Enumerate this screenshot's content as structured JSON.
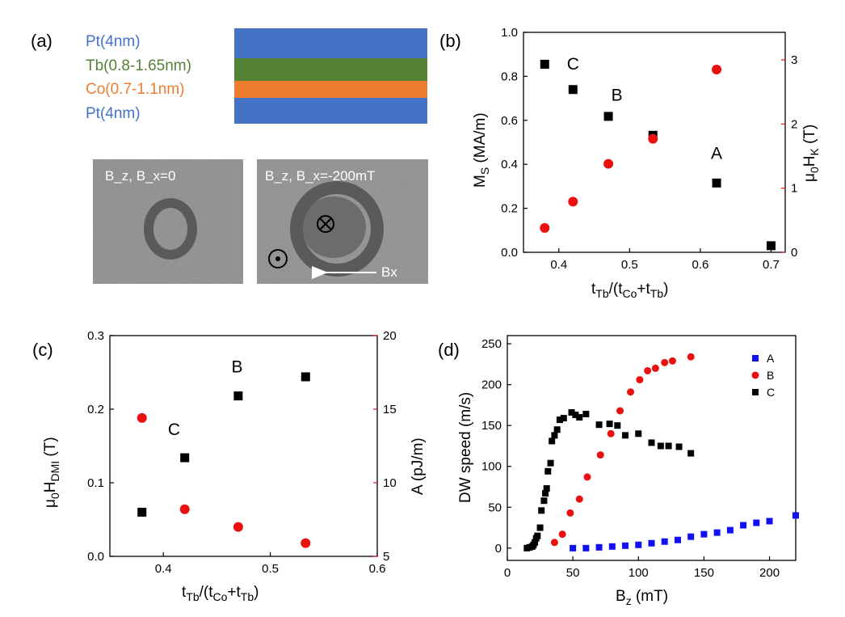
{
  "colors": {
    "black": "#000000",
    "red": "#e8110f",
    "blue": "#1010f0",
    "pt": "#4472c4",
    "tb": "#548235",
    "co": "#ed7d31"
  },
  "panel_a": {
    "label": "(a)",
    "layers": [
      {
        "name": "Pt(4nm)",
        "color": "#4472c4"
      },
      {
        "name": "Tb(0.8-1.65nm)",
        "color": "#548235"
      },
      {
        "name": "Co(0.7-1.1nm)",
        "color": "#ed7d31"
      },
      {
        "name": "Pt(4nm)",
        "color": "#4472c4"
      }
    ],
    "image_left_label": "B_z, B_x=0",
    "image_right_label": "B_z, B_x=-200mT",
    "arrow_label": "Bx"
  },
  "chart_data": [
    {
      "id": "b",
      "panel_label": "(b)",
      "type": "scatter",
      "xlabel": "t_Tb/(t_Co+t_Tb)",
      "ylabel_left": "M_S (MA/m)",
      "ylabel_right": "μ_0H_K (T)",
      "xlim": [
        0.35,
        0.72
      ],
      "xticks": [
        "0.4",
        "0.5",
        "0.6",
        "0.7"
      ],
      "ylim_left": [
        0,
        1.0
      ],
      "yticks_left": [
        "0.0",
        "0.2",
        "0.4",
        "0.6",
        "0.8",
        "1.0"
      ],
      "ylim_right": [
        0,
        3.43
      ],
      "yticks_right": [
        "0",
        "1",
        "2",
        "3"
      ],
      "series": [
        {
          "name": "M_S",
          "axis": "left",
          "marker": "square",
          "color": "#000000",
          "x": [
            0.38,
            0.42,
            0.47,
            0.533,
            0.623,
            0.7
          ],
          "y": [
            0.855,
            0.74,
            0.618,
            0.532,
            0.315,
            0.03
          ]
        },
        {
          "name": "μ0HK",
          "axis": "right",
          "marker": "circle",
          "color": "#e8110f",
          "x": [
            0.38,
            0.42,
            0.47,
            0.533,
            0.623
          ],
          "y": [
            0.38,
            0.79,
            1.38,
            1.77,
            2.85
          ]
        }
      ],
      "annotations": [
        {
          "text": "C",
          "x": 0.42,
          "y": 0.83
        },
        {
          "text": "B",
          "x": 0.482,
          "y": 0.69
        },
        {
          "text": "A",
          "x": 0.623,
          "y": 0.425
        }
      ]
    },
    {
      "id": "c",
      "panel_label": "(c)",
      "type": "scatter",
      "xlabel": "t_Tb/(t_Co+t_Tb)",
      "ylabel_left": "μ_0H_DMI (T)",
      "ylabel_right": "A (pJ/m)",
      "xlim": [
        0.35,
        0.6
      ],
      "xticks": [
        "0.4",
        "0.5",
        "0.6"
      ],
      "ylim_left": [
        0,
        0.3
      ],
      "yticks_left": [
        "0.0",
        "0.1",
        "0.2",
        "0.3"
      ],
      "ylim_right": [
        5,
        20
      ],
      "yticks_right": [
        "5",
        "10",
        "15",
        "20"
      ],
      "series": [
        {
          "name": "μ0HDMI",
          "axis": "left",
          "marker": "square",
          "color": "#000000",
          "x": [
            0.38,
            0.42,
            0.47,
            0.533
          ],
          "y": [
            0.06,
            0.134,
            0.218,
            0.244
          ]
        },
        {
          "name": "A",
          "axis": "right",
          "marker": "circle",
          "color": "#e8110f",
          "x": [
            0.38,
            0.42,
            0.47,
            0.533
          ],
          "y": [
            14.4,
            8.2,
            7.0,
            5.9
          ]
        }
      ],
      "annotations": [
        {
          "text": "C",
          "x": 0.41,
          "y": 0.165
        },
        {
          "text": "B",
          "x": 0.469,
          "y": 0.25
        }
      ]
    },
    {
      "id": "d",
      "panel_label": "(d)",
      "type": "scatter",
      "xlabel": "B_z (mT)",
      "ylabel_left": "DW speed (m/s)",
      "xlim": [
        0,
        220
      ],
      "xticks": [
        "0",
        "50",
        "100",
        "150",
        "200"
      ],
      "ylim_left": [
        -15,
        260
      ],
      "yticks_left": [
        "0",
        "50",
        "100",
        "150",
        "200",
        "250"
      ],
      "legend_position": "top-right",
      "series": [
        {
          "name": "A",
          "axis": "left",
          "marker": "square",
          "color": "#1010f0",
          "x": [
            50,
            60,
            70,
            80,
            90,
            100,
            110,
            120,
            130,
            140,
            150,
            160,
            170,
            180,
            190,
            200,
            220
          ],
          "y": [
            0,
            0,
            1,
            2,
            3,
            4,
            6,
            8,
            10,
            14,
            17,
            19,
            22,
            28,
            31,
            33,
            40
          ]
        },
        {
          "name": "B",
          "axis": "left",
          "marker": "circle",
          "color": "#e8110f",
          "x": [
            36,
            42,
            48,
            55,
            61,
            71,
            79,
            86,
            94,
            101,
            107,
            113,
            120,
            126,
            140
          ],
          "y": [
            7,
            17,
            43,
            60,
            87,
            114,
            140,
            168,
            191,
            206,
            217,
            220,
            227,
            229,
            234
          ]
        },
        {
          "name": "C",
          "axis": "left",
          "marker": "square",
          "color": "#000000",
          "x": [
            15,
            17,
            19,
            20,
            21,
            22,
            23,
            25,
            26,
            28,
            29,
            30,
            31,
            33,
            34,
            36,
            38,
            40,
            43,
            49,
            52,
            55,
            60,
            70,
            78,
            84,
            90,
            100,
            110,
            117,
            123,
            131,
            140
          ],
          "y": [
            0,
            1,
            2,
            4,
            7,
            12,
            15,
            25,
            46,
            58,
            67,
            73,
            94,
            104,
            131,
            138,
            145,
            157,
            159,
            166,
            163,
            160,
            164,
            151,
            152,
            150,
            138,
            140,
            129,
            125,
            125,
            124,
            116
          ]
        }
      ]
    }
  ]
}
